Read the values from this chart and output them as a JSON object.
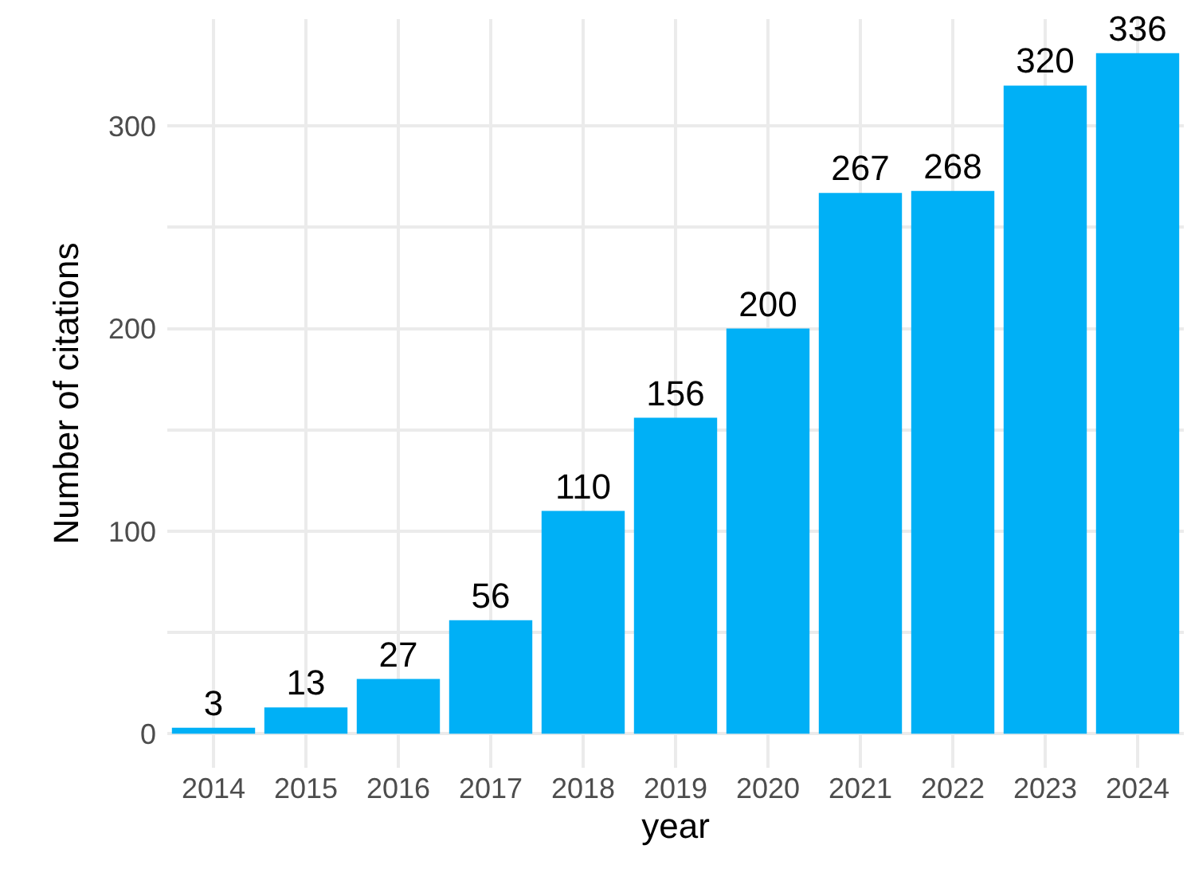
{
  "chart_data": {
    "type": "bar",
    "xlabel": "year",
    "ylabel": "Number of citations",
    "categories": [
      "2014",
      "2015",
      "2016",
      "2017",
      "2018",
      "2019",
      "2020",
      "2021",
      "2022",
      "2023",
      "2024"
    ],
    "values": [
      3,
      13,
      27,
      56,
      110,
      156,
      200,
      267,
      268,
      320,
      336
    ],
    "color": "#00b0f6",
    "data_labels": true,
    "grid": true,
    "ylim": [
      -16.8,
      352.8
    ],
    "yticks": [
      0,
      {
        "value": 50,
        "label": null
      },
      100,
      {
        "value": 150,
        "label": null
      },
      200,
      {
        "value": 250,
        "label": null
      },
      300
    ]
  }
}
